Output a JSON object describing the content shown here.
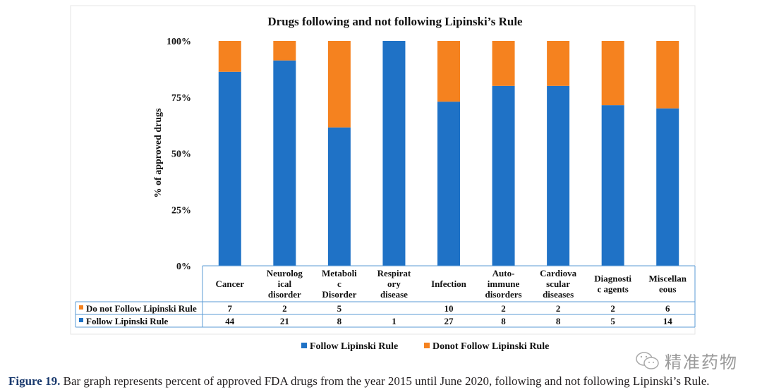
{
  "chart_data": {
    "type": "bar",
    "stacked": true,
    "percent": true,
    "title": "Drugs following and not following Lipinski’s Rule",
    "ylabel": "% of approved drugs",
    "xlabel": "",
    "ylim": [
      0,
      100
    ],
    "yticks": [
      "0%",
      "25%",
      "50%",
      "75%",
      "100%"
    ],
    "categories": [
      [
        "Cancer"
      ],
      [
        "Neurolog",
        "ical",
        "disorder"
      ],
      [
        "Metaboli",
        "c",
        "Disorder"
      ],
      [
        "Respirat",
        "ory",
        "disease"
      ],
      [
        "Infection"
      ],
      [
        "Auto-",
        "immune",
        "disorders"
      ],
      [
        "Cardiova",
        "scular",
        "diseases"
      ],
      [
        "Diagnosti",
        "c agents"
      ],
      [
        "Miscellan",
        "eous"
      ]
    ],
    "series": [
      {
        "name": "Follow Lipinski Rule",
        "table_label": "Follow Lipinski Rule",
        "color": "#1f72c6",
        "values": [
          44,
          21,
          8,
          1,
          27,
          8,
          8,
          5,
          14
        ]
      },
      {
        "name": "Donot Follow Lipinski Rule",
        "table_label": "Do not Follow Lipinski Rule",
        "color": "#f5821f",
        "values": [
          7,
          2,
          5,
          null,
          10,
          2,
          2,
          2,
          6
        ]
      }
    ],
    "legend": "bottom",
    "grid": false
  },
  "caption": {
    "label": "Figure 19.",
    "text": " Bar graph represents percent of approved FDA drugs from the year 2015 until June 2020, following and not following Lipinski’s Rule."
  },
  "watermark": "精准药物"
}
